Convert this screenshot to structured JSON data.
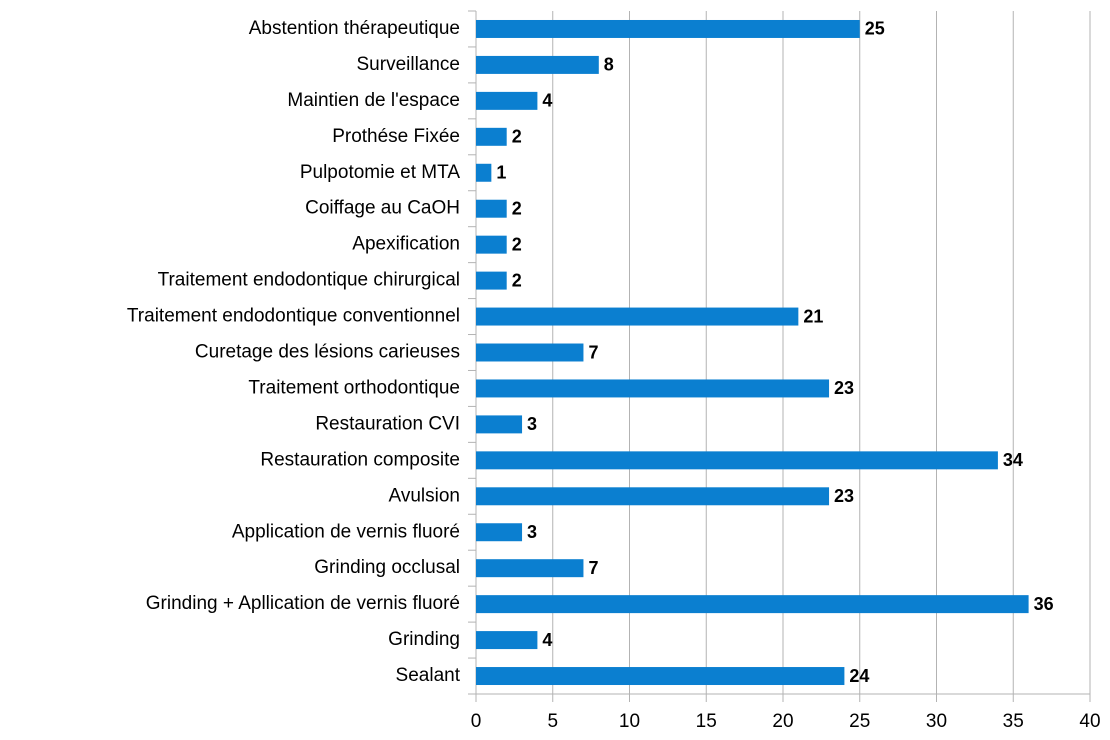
{
  "chart_data": {
    "type": "bar",
    "orientation": "horizontal",
    "categories": [
      "Abstention thérapeutique",
      "Surveillance",
      "Maintien de l'espace",
      "Prothése Fixée",
      "Pulpotomie et MTA",
      "Coiffage au CaOH",
      "Apexification",
      "Traitement endodontique chirurgical",
      "Traitement endodontique conventionnel",
      "Curetage des lésions carieuses",
      "Traitement orthodontique",
      "Restauration CVI",
      "Restauration composite",
      "Avulsion",
      "Application de vernis fluoré",
      "Grinding occlusal",
      "Grinding + Apllication de vernis fluoré",
      "Grinding",
      "Sealant"
    ],
    "values": [
      25,
      8,
      4,
      2,
      1,
      2,
      2,
      2,
      21,
      7,
      23,
      3,
      34,
      23,
      3,
      7,
      36,
      4,
      24
    ],
    "color": "#0b7fd0",
    "xlim": [
      0,
      40
    ],
    "xticks": [
      0,
      5,
      10,
      15,
      20,
      25,
      30,
      35,
      40
    ],
    "grid": true
  }
}
